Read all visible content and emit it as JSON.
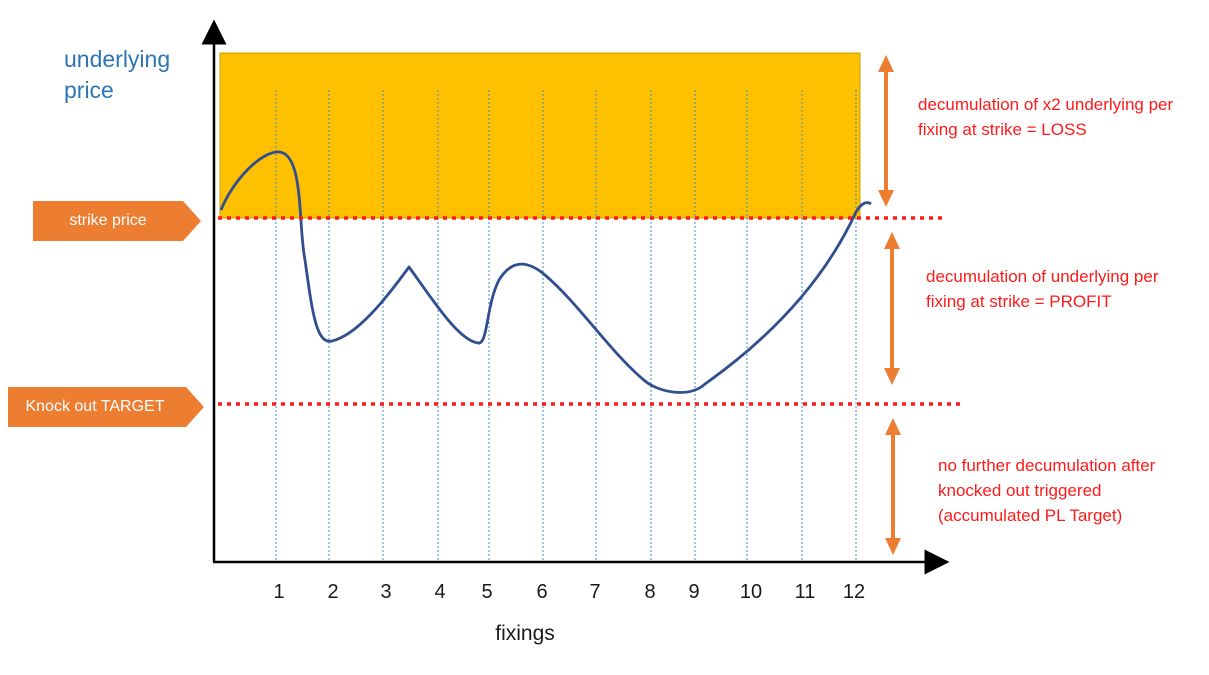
{
  "axes": {
    "y_title": "underlying price",
    "x_title": "fixings",
    "fixing_labels": [
      "1",
      "2",
      "3",
      "4",
      "5",
      "6",
      "7",
      "8",
      "9",
      "10",
      "11",
      "12"
    ]
  },
  "levels": {
    "strike_label": "strike price",
    "knockout_label": "Knock out TARGET"
  },
  "annotations": {
    "loss": "decumulation of x2 underlying per fixing at strike = LOSS",
    "profit": "decumulation of underlying per fixing at strike = PROFIT",
    "knockout": "no further decumulation after knocked out triggered (accumulated PL Target)"
  },
  "colors": {
    "loss_zone": "#FFC000",
    "price_path": "#2F4F8F",
    "level_line": "#ff1a1a",
    "tag_fill": "#ED7D31",
    "arrow": "#ED7D31",
    "fixing_gridline": "#3A8FD0",
    "y_title": "#2E75B6",
    "annotation_text": "#ff1a1a"
  }
}
